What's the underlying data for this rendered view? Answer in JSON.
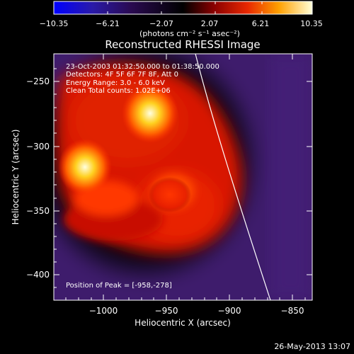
{
  "colorbar": {
    "tick_labels": [
      "−10.35",
      "−6.21",
      "−2.07",
      "2.07",
      "6.21",
      "10.35"
    ],
    "unit_label": "(photons cm⁻² s⁻¹ asec⁻²)"
  },
  "title": "Reconstructed RHESSI Image",
  "info": {
    "line1": "23-Oct-2003 01:32:50.000 to 01:38:50.000",
    "line2": "Detectors: 4F 5F 6F 7F 8F, Att 0",
    "line3": "Energy Range: 3.0 - 6.0 keV",
    "line4": "Clean     Total counts: 1.02E+06"
  },
  "peak_text": "Position of Peak = [-958,-278]",
  "axes": {
    "xlabel": "Heliocentric X (arcsec)",
    "ylabel": "Heliocentric Y (arcsec)",
    "x_ticks": [
      "−1000",
      "−950",
      "−900",
      "−850"
    ],
    "y_ticks": [
      "−250",
      "−300",
      "−350",
      "−400"
    ]
  },
  "timestamp": "26-May-2013 13:07",
  "colors": {
    "background": "#000000",
    "disk_purple": "#3e1c6c",
    "limb_line": "#ffffff"
  }
}
